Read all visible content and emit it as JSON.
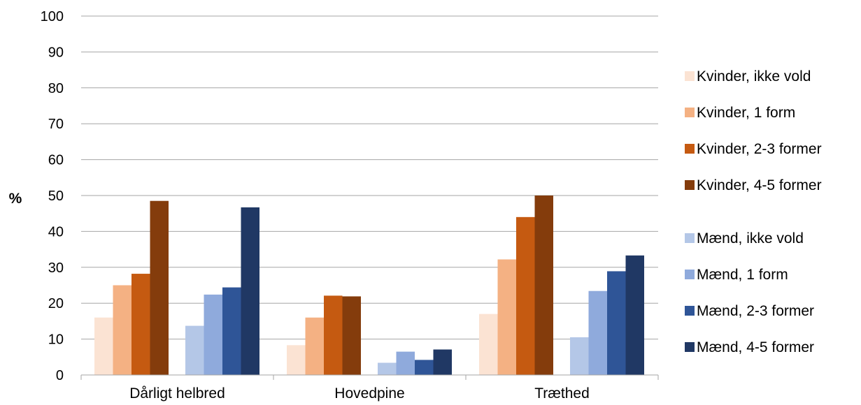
{
  "chart_data": {
    "type": "bar",
    "title": "",
    "xlabel": "",
    "ylabel": "%",
    "ylim": [
      0,
      100
    ],
    "yticks": [
      0,
      10,
      20,
      30,
      40,
      50,
      60,
      70,
      80,
      90,
      100
    ],
    "grid": true,
    "legend_position": "right",
    "categories": [
      "Dårligt helbred",
      "Hovedpine",
      "Træthed"
    ],
    "series": [
      {
        "name": "Kvinder, ikke vold",
        "color": "#FBE3D3",
        "values": [
          16,
          8.3,
          17
        ]
      },
      {
        "name": "Kvinder, 1 form",
        "color": "#F4B183",
        "values": [
          25,
          16,
          32.2
        ]
      },
      {
        "name": "Kvinder, 2-3 former",
        "color": "#C55A11",
        "values": [
          28.2,
          22.1,
          44
        ]
      },
      {
        "name": "Kvinder, 4-5 former",
        "color": "#843C0C",
        "values": [
          48.5,
          21.9,
          50
        ]
      },
      {
        "name": "Mænd, ikke vold",
        "color": "#B4C7E7",
        "values": [
          13.7,
          3.4,
          10.5
        ]
      },
      {
        "name": "Mænd, 1 form",
        "color": "#8FAADC",
        "values": [
          22.4,
          6.5,
          23.4
        ]
      },
      {
        "name": "Mænd, 2-3 former",
        "color": "#2F5597",
        "values": [
          24.4,
          4.2,
          28.9
        ]
      },
      {
        "name": "Mænd, 4-5 former",
        "color": "#203864",
        "values": [
          46.7,
          7.1,
          33.3
        ]
      }
    ]
  }
}
